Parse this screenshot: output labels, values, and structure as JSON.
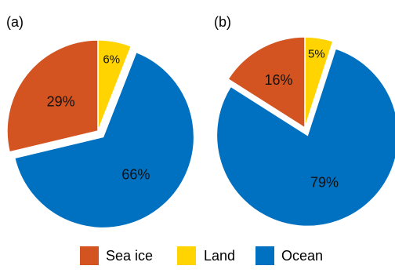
{
  "chart_data": [
    {
      "type": "pie",
      "panel_label": "(a)",
      "slices": [
        {
          "name": "Sea ice",
          "value": 29,
          "label": "29%"
        },
        {
          "name": "Land",
          "value": 6,
          "label": "6%"
        },
        {
          "name": "Ocean",
          "value": 66,
          "label": "66%"
        }
      ],
      "exploded_slice": "Ocean"
    },
    {
      "type": "pie",
      "panel_label": "(b)",
      "slices": [
        {
          "name": "Sea ice",
          "value": 16,
          "label": "16%"
        },
        {
          "name": "Land",
          "value": 5,
          "label": "5%"
        },
        {
          "name": "Ocean",
          "value": 79,
          "label": "79%"
        }
      ],
      "exploded_slice": "Ocean"
    }
  ],
  "legend": {
    "position": "bottom",
    "items": [
      {
        "name": "Sea ice",
        "color": "#D35420"
      },
      {
        "name": "Land",
        "color": "#FFD400"
      },
      {
        "name": "Ocean",
        "color": "#0070C0"
      }
    ]
  }
}
